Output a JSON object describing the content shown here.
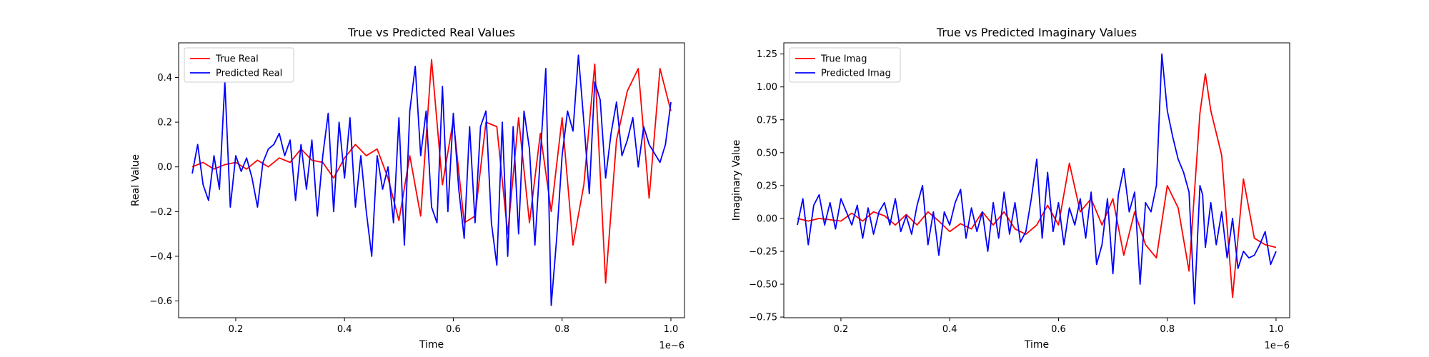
{
  "chart_data": [
    {
      "type": "line",
      "title": "True vs Predicted Real Values",
      "xlabel": "Time",
      "ylabel": "Real Value",
      "x_offset_label": "1e−6",
      "xlim": [
        0.095,
        1.025
      ],
      "ylim": [
        -0.675,
        0.555
      ],
      "xticks": [
        0.2,
        0.4,
        0.6,
        0.8,
        1.0
      ],
      "xtick_labels": [
        "0.2",
        "0.4",
        "0.6",
        "0.8",
        "1.0"
      ],
      "yticks": [
        -0.6,
        -0.4,
        -0.2,
        0.0,
        0.2,
        0.4
      ],
      "ytick_labels": [
        "−0.6",
        "−0.4",
        "−0.2",
        "0.0",
        "0.2",
        "0.4"
      ],
      "grid": false,
      "legend_position": "top-left",
      "series": [
        {
          "name": "True Real",
          "color": "#ff0000",
          "x": [
            0.12,
            0.14,
            0.16,
            0.18,
            0.2,
            0.22,
            0.24,
            0.26,
            0.28,
            0.3,
            0.32,
            0.34,
            0.36,
            0.38,
            0.4,
            0.42,
            0.44,
            0.46,
            0.48,
            0.5,
            0.52,
            0.54,
            0.56,
            0.58,
            0.6,
            0.62,
            0.64,
            0.66,
            0.68,
            0.7,
            0.72,
            0.74,
            0.76,
            0.78,
            0.8,
            0.82,
            0.84,
            0.86,
            0.88,
            0.9,
            0.92,
            0.94,
            0.96,
            0.98,
            1.0
          ],
          "y": [
            0.0,
            0.02,
            -0.01,
            0.01,
            0.02,
            -0.01,
            0.03,
            0.0,
            0.04,
            0.02,
            0.08,
            0.03,
            0.02,
            -0.05,
            0.04,
            0.1,
            0.05,
            0.08,
            -0.05,
            -0.24,
            0.05,
            -0.22,
            0.48,
            -0.08,
            0.21,
            -0.25,
            -0.22,
            0.2,
            0.18,
            -0.3,
            0.22,
            -0.25,
            0.15,
            -0.2,
            0.22,
            -0.35,
            -0.08,
            0.46,
            -0.52,
            0.12,
            0.34,
            0.44,
            -0.14,
            0.44,
            0.25
          ]
        },
        {
          "name": "Predicted Real",
          "color": "#0000ff",
          "x": [
            0.12,
            0.13,
            0.14,
            0.15,
            0.16,
            0.17,
            0.18,
            0.19,
            0.2,
            0.21,
            0.22,
            0.23,
            0.24,
            0.25,
            0.26,
            0.27,
            0.28,
            0.29,
            0.3,
            0.31,
            0.32,
            0.33,
            0.34,
            0.35,
            0.36,
            0.37,
            0.38,
            0.39,
            0.4,
            0.41,
            0.42,
            0.43,
            0.44,
            0.45,
            0.46,
            0.47,
            0.48,
            0.49,
            0.5,
            0.51,
            0.52,
            0.53,
            0.54,
            0.55,
            0.56,
            0.57,
            0.58,
            0.59,
            0.6,
            0.61,
            0.62,
            0.63,
            0.64,
            0.65,
            0.66,
            0.67,
            0.68,
            0.69,
            0.7,
            0.71,
            0.72,
            0.73,
            0.74,
            0.75,
            0.76,
            0.77,
            0.78,
            0.79,
            0.8,
            0.81,
            0.82,
            0.83,
            0.84,
            0.85,
            0.86,
            0.87,
            0.88,
            0.89,
            0.9,
            0.91,
            0.92,
            0.93,
            0.94,
            0.95,
            0.96,
            0.97,
            0.98,
            0.99,
            1.0
          ],
          "y": [
            -0.03,
            0.1,
            -0.08,
            -0.15,
            0.05,
            -0.1,
            0.38,
            -0.18,
            0.05,
            -0.02,
            0.04,
            -0.05,
            -0.18,
            0.02,
            0.08,
            0.1,
            0.15,
            0.05,
            0.12,
            -0.15,
            0.1,
            -0.1,
            0.12,
            -0.22,
            0.05,
            0.24,
            -0.2,
            0.2,
            -0.05,
            0.22,
            -0.18,
            0.05,
            -0.2,
            -0.4,
            0.05,
            -0.1,
            0.0,
            -0.25,
            0.22,
            -0.35,
            0.25,
            0.45,
            0.05,
            0.25,
            -0.18,
            -0.25,
            0.36,
            -0.2,
            0.24,
            -0.1,
            -0.32,
            0.18,
            -0.25,
            0.18,
            0.25,
            -0.25,
            -0.44,
            0.2,
            -0.4,
            0.18,
            -0.3,
            0.25,
            0.08,
            -0.35,
            0.05,
            0.44,
            -0.62,
            -0.32,
            0.05,
            0.25,
            0.16,
            0.5,
            0.2,
            -0.12,
            0.38,
            0.3,
            -0.05,
            0.15,
            0.29,
            0.05,
            0.12,
            0.22,
            0.0,
            0.18,
            0.1,
            0.06,
            0.02,
            0.1,
            0.29
          ]
        }
      ]
    },
    {
      "type": "line",
      "title": "True vs Predicted Imaginary Values",
      "xlabel": "Time",
      "ylabel": "Imaginary Value",
      "x_offset_label": "1e−6",
      "xlim": [
        0.095,
        1.025
      ],
      "ylim": [
        -0.755,
        1.335
      ],
      "xticks": [
        0.2,
        0.4,
        0.6,
        0.8,
        1.0
      ],
      "xtick_labels": [
        "0.2",
        "0.4",
        "0.6",
        "0.8",
        "1.0"
      ],
      "yticks": [
        -0.75,
        -0.5,
        -0.25,
        0.0,
        0.25,
        0.5,
        0.75,
        1.0,
        1.25
      ],
      "ytick_labels": [
        "−0.75",
        "−0.50",
        "−0.25",
        "0.00",
        "0.25",
        "0.50",
        "0.75",
        "1.00",
        "1.25"
      ],
      "grid": false,
      "legend_position": "top-left",
      "series": [
        {
          "name": "True Imag",
          "color": "#ff0000",
          "x": [
            0.12,
            0.14,
            0.16,
            0.18,
            0.2,
            0.22,
            0.24,
            0.26,
            0.28,
            0.3,
            0.32,
            0.34,
            0.36,
            0.38,
            0.4,
            0.42,
            0.44,
            0.46,
            0.48,
            0.5,
            0.52,
            0.54,
            0.56,
            0.58,
            0.6,
            0.62,
            0.64,
            0.66,
            0.68,
            0.7,
            0.72,
            0.74,
            0.76,
            0.78,
            0.8,
            0.82,
            0.84,
            0.86,
            0.87,
            0.88,
            0.9,
            0.92,
            0.94,
            0.96,
            0.98,
            1.0
          ],
          "y": [
            0.0,
            -0.02,
            0.0,
            -0.01,
            -0.02,
            0.04,
            -0.02,
            0.05,
            0.02,
            -0.05,
            0.03,
            -0.05,
            0.05,
            -0.02,
            -0.1,
            -0.04,
            -0.08,
            0.05,
            -0.05,
            0.05,
            -0.08,
            -0.12,
            -0.05,
            0.1,
            -0.05,
            0.42,
            0.05,
            0.15,
            -0.05,
            0.15,
            -0.28,
            0.05,
            -0.2,
            -0.3,
            0.25,
            0.08,
            -0.4,
            0.8,
            1.1,
            0.82,
            0.48,
            -0.6,
            0.3,
            -0.15,
            -0.2,
            -0.22
          ]
        },
        {
          "name": "Predicted Imag",
          "color": "#0000ff",
          "x": [
            0.12,
            0.13,
            0.14,
            0.15,
            0.16,
            0.17,
            0.18,
            0.19,
            0.2,
            0.21,
            0.22,
            0.23,
            0.24,
            0.25,
            0.26,
            0.27,
            0.28,
            0.29,
            0.3,
            0.31,
            0.32,
            0.33,
            0.34,
            0.35,
            0.36,
            0.37,
            0.38,
            0.39,
            0.4,
            0.41,
            0.42,
            0.43,
            0.44,
            0.45,
            0.46,
            0.47,
            0.48,
            0.49,
            0.5,
            0.51,
            0.52,
            0.53,
            0.54,
            0.55,
            0.56,
            0.57,
            0.58,
            0.59,
            0.6,
            0.61,
            0.62,
            0.63,
            0.64,
            0.65,
            0.66,
            0.67,
            0.68,
            0.69,
            0.7,
            0.71,
            0.72,
            0.73,
            0.74,
            0.75,
            0.76,
            0.77,
            0.78,
            0.79,
            0.8,
            0.81,
            0.82,
            0.83,
            0.84,
            0.85,
            0.86,
            0.865,
            0.87,
            0.88,
            0.89,
            0.9,
            0.91,
            0.92,
            0.93,
            0.94,
            0.95,
            0.96,
            0.97,
            0.98,
            0.99,
            1.0
          ],
          "y": [
            -0.05,
            0.15,
            -0.2,
            0.1,
            0.18,
            -0.05,
            0.12,
            -0.08,
            0.15,
            0.05,
            -0.05,
            0.1,
            -0.15,
            0.08,
            -0.12,
            0.05,
            0.12,
            -0.05,
            0.15,
            -0.1,
            0.02,
            -0.12,
            0.1,
            0.25,
            -0.2,
            0.05,
            -0.28,
            0.05,
            -0.05,
            0.12,
            0.22,
            -0.15,
            0.08,
            -0.1,
            0.05,
            -0.25,
            0.12,
            -0.15,
            0.2,
            -0.12,
            0.12,
            -0.18,
            -0.1,
            0.15,
            0.45,
            -0.15,
            0.35,
            -0.1,
            0.12,
            -0.2,
            0.08,
            -0.05,
            0.15,
            -0.15,
            0.2,
            -0.35,
            -0.2,
            0.15,
            -0.42,
            0.18,
            0.38,
            0.05,
            0.2,
            -0.5,
            0.12,
            0.05,
            0.25,
            1.25,
            0.82,
            0.62,
            0.45,
            0.35,
            0.2,
            -0.65,
            0.25,
            0.18,
            -0.22,
            0.12,
            -0.2,
            0.05,
            -0.3,
            0.0,
            -0.38,
            -0.25,
            -0.3,
            -0.28,
            -0.2,
            -0.1,
            -0.35,
            -0.25
          ]
        }
      ]
    }
  ]
}
